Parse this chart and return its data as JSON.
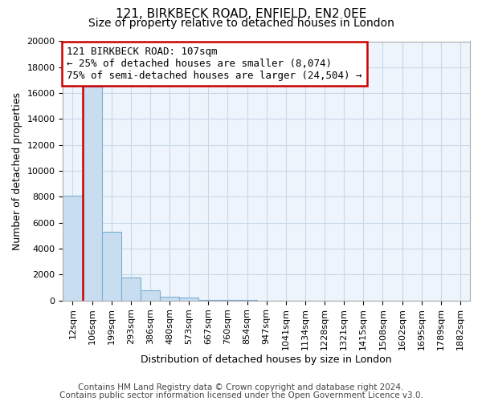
{
  "title": "121, BIRKBECK ROAD, ENFIELD, EN2 0EE",
  "subtitle": "Size of property relative to detached houses in London",
  "xlabel": "Distribution of detached houses by size in London",
  "ylabel": "Number of detached properties",
  "annotation_line1": "121 BIRKBECK ROAD: 107sqm",
  "annotation_line2": "← 25% of detached houses are smaller (8,074)",
  "annotation_line3": "75% of semi-detached houses are larger (24,504) →",
  "footnote1": "Contains HM Land Registry data © Crown copyright and database right 2024.",
  "footnote2": "Contains public sector information licensed under the Open Government Licence v3.0.",
  "categories": [
    "12sqm",
    "106sqm",
    "199sqm",
    "293sqm",
    "386sqm",
    "480sqm",
    "573sqm",
    "667sqm",
    "760sqm",
    "854sqm",
    "947sqm",
    "1041sqm",
    "1134sqm",
    "1228sqm",
    "1321sqm",
    "1415sqm",
    "1508sqm",
    "1602sqm",
    "1695sqm",
    "1789sqm",
    "1882sqm"
  ],
  "values": [
    8074,
    16500,
    5300,
    1750,
    800,
    300,
    200,
    50,
    20,
    10,
    5,
    3,
    2,
    1,
    1,
    0,
    0,
    0,
    0,
    0,
    0
  ],
  "bar_color": "#c8ddf0",
  "bar_edge_color": "#7aafd4",
  "vline_color": "#cc0000",
  "vline_bar_index": 1,
  "annotation_box_color": "#cc0000",
  "ylim": [
    0,
    20000
  ],
  "yticks": [
    0,
    2000,
    4000,
    6000,
    8000,
    10000,
    12000,
    14000,
    16000,
    18000,
    20000
  ],
  "grid_color": "#c8d8e8",
  "background_color": "#ffffff",
  "plot_bg_color": "#eef4fb",
  "title_fontsize": 11,
  "subtitle_fontsize": 10,
  "axis_fontsize": 9,
  "tick_fontsize": 8,
  "annotation_fontsize": 9,
  "footnote_fontsize": 7.5
}
